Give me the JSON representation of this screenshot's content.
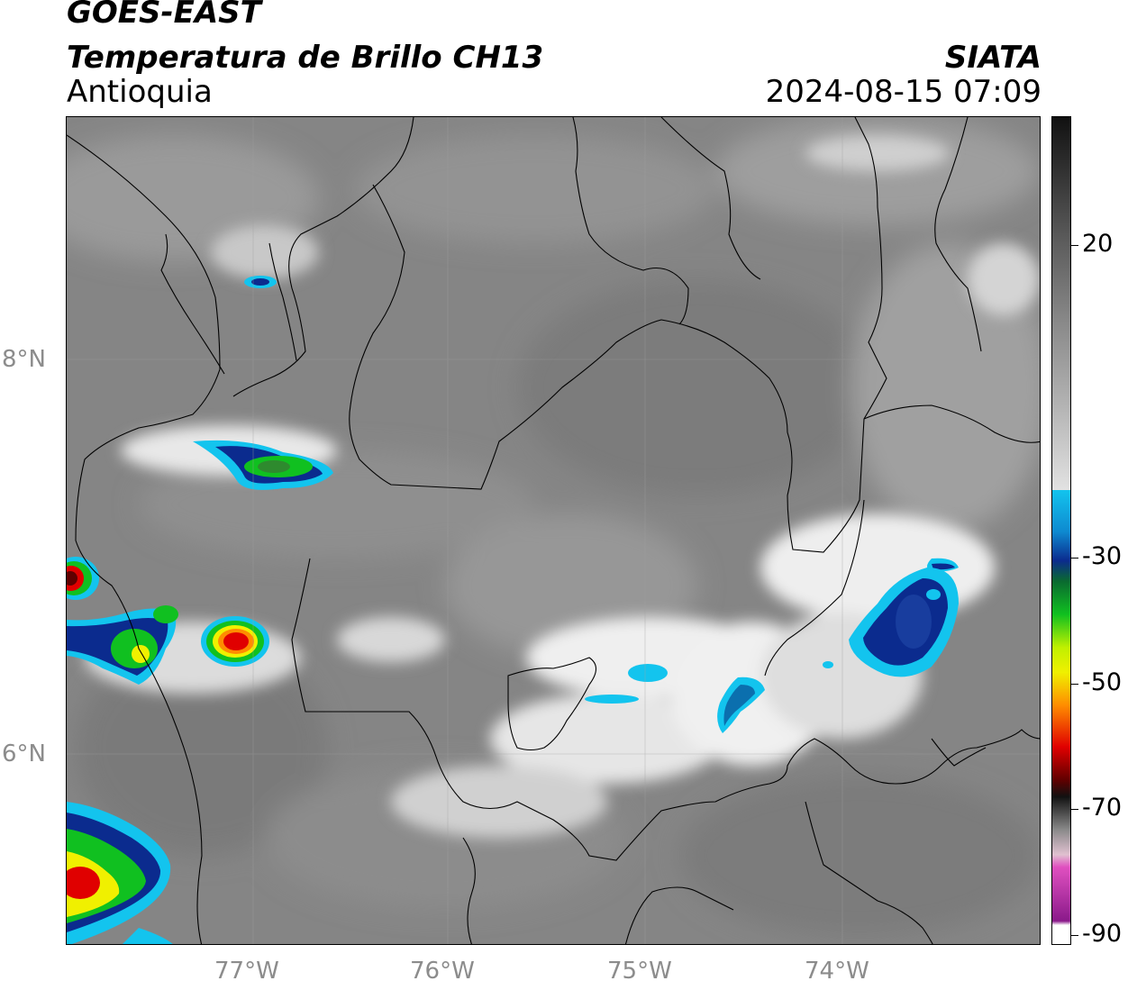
{
  "header": {
    "title_line1": "GOES-EAST",
    "title_line2": "Temperatura de Brillo CH13",
    "region": "Antioquia",
    "brand": "SIATA",
    "timestamp": "2024-08-15 07:09"
  },
  "axes": {
    "lat_labels": [
      "8°N",
      "6°N"
    ],
    "lon_labels": [
      "77°W",
      "76°W",
      "75°W",
      "74°W"
    ]
  },
  "colorbar": {
    "labels": [
      "20",
      "-30",
      "-50",
      "-70",
      "-90"
    ],
    "colors": {
      "gray_warm": "#777777",
      "white": "#f4f4f4",
      "cyan": "#13c4ee",
      "dark_blue": "#0b2b8e",
      "green": "#10c020",
      "yellow": "#f0f000",
      "orange": "#ff8c00",
      "red": "#e00000",
      "dark_red": "#600000",
      "magenta": "#d040c0",
      "purple": "#8a1a8a"
    }
  }
}
